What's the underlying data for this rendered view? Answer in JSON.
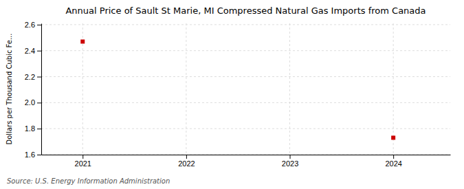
{
  "chart_data": {
    "type": "scatter",
    "title": "Annual Price of Sault St Marie, MI Compressed Natural Gas Imports from Canada",
    "ylabel": "Dollars per Thousand Cubic Fe...",
    "source": "Source: U.S. Energy Information Administration",
    "x": [
      2021,
      2024
    ],
    "values": [
      2.47,
      1.73
    ],
    "color": "#cc0000",
    "marker": "square",
    "xlim": [
      2020.6,
      2024.55
    ],
    "ylim": [
      1.6,
      2.61
    ],
    "xticks": [
      2021,
      2022,
      2023,
      2024
    ],
    "yticks": [
      1.6,
      1.8,
      {
        "value": 2.0,
        "label": "2.0"
      },
      2.2,
      2.4,
      2.6
    ],
    "grid": true
  }
}
